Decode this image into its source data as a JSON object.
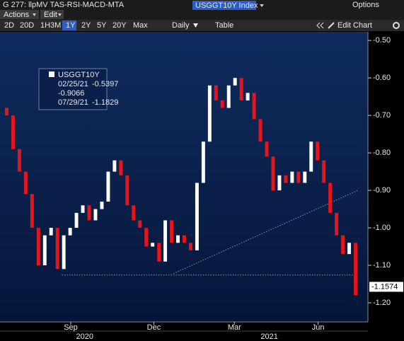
{
  "toolbar": {
    "title": "G 277: llpMV TAS-RSI-MACD-MTA",
    "ticker": "USGGT10Y Index",
    "options": "Options",
    "menus": [
      "Actions",
      "Edit"
    ],
    "periods": [
      "2D",
      "20D",
      "1H3M",
      "1Y",
      "2Y",
      "5Y",
      "20Y",
      "Max"
    ],
    "selected_period": 3,
    "frequency": "Daily",
    "table": "Table",
    "edit_chart": "Edit Chart"
  },
  "chart_data": {
    "type": "candlestick",
    "legend": {
      "name": "USGGT10Y",
      "high_date": "02/25/21",
      "high": -0.5397,
      "last": -0.9066,
      "low_date": "07/29/21",
      "low": -1.1829
    },
    "x": [
      0,
      1,
      2,
      3,
      4,
      5,
      6,
      7,
      8,
      9,
      10,
      11,
      12,
      13,
      14,
      15,
      16,
      17,
      18,
      19,
      20,
      21,
      22,
      23,
      24,
      25,
      26,
      27,
      28,
      29,
      30,
      31,
      32,
      33,
      34,
      35,
      36,
      37,
      38,
      39,
      40,
      41,
      42,
      43,
      44,
      45,
      46,
      47,
      48,
      49,
      50,
      51,
      52,
      53,
      54,
      55
    ],
    "open": [
      -0.68,
      -0.7,
      -0.79,
      -0.85,
      -0.91,
      -1.0,
      -1.1,
      -1.02,
      -1.0,
      -1.11,
      -1.02,
      -1.0,
      -0.96,
      -0.94,
      -0.98,
      -0.95,
      -0.93,
      -0.85,
      -0.82,
      -0.86,
      -0.94,
      -0.98,
      -1.0,
      -1.05,
      -1.04,
      -1.09,
      -0.98,
      -1.04,
      -1.02,
      -1.04,
      -1.06,
      -0.88,
      -0.77,
      -0.62,
      -0.66,
      -0.68,
      -0.62,
      -0.6,
      -0.66,
      -0.64,
      -0.71,
      -0.77,
      -0.81,
      -0.9,
      -0.86,
      -0.88,
      -0.85,
      -0.88,
      -0.85,
      -0.77,
      -0.82,
      -0.88,
      -0.96,
      -1.02,
      -1.07,
      -1.04
    ],
    "close": [
      -0.7,
      -0.79,
      -0.85,
      -0.91,
      -1.0,
      -1.1,
      -1.02,
      -1.0,
      -1.11,
      -1.02,
      -1.0,
      -0.96,
      -0.94,
      -0.98,
      -0.95,
      -0.93,
      -0.85,
      -0.82,
      -0.86,
      -0.94,
      -0.98,
      -1.0,
      -1.05,
      -1.04,
      -1.09,
      -0.98,
      -1.04,
      -1.02,
      -1.04,
      -1.06,
      -0.88,
      -0.77,
      -0.62,
      -0.66,
      -0.68,
      -0.62,
      -0.6,
      -0.66,
      -0.64,
      -0.71,
      -0.77,
      -0.81,
      -0.9,
      -0.86,
      -0.88,
      -0.85,
      -0.88,
      -0.85,
      -0.77,
      -0.82,
      -0.88,
      -0.96,
      -1.02,
      -1.07,
      -1.04,
      -1.18
    ],
    "up_color": "#ffffff",
    "down_color": "#e8141a",
    "last_value": -1.1574,
    "hline": {
      "y": -1.126,
      "x": [
        9.2,
        55.8
      ]
    },
    "trendline": {
      "x": [
        26.8,
        56
      ],
      "y": [
        -1.122,
        -0.899
      ]
    },
    "xlim": [
      0,
      56
    ],
    "xticks": [
      {
        "value": 10.6,
        "label": "Sep"
      },
      {
        "value": 23.7,
        "label": "Dec"
      },
      {
        "value": 36.4,
        "label": "Mar"
      },
      {
        "value": 49.6,
        "label": "Jun"
      }
    ],
    "year_labels": [
      {
        "value": 12.8,
        "label": "2020"
      },
      {
        "value": 41.9,
        "label": "2021"
      }
    ],
    "ylim": [
      -1.251,
      -0.477
    ],
    "yticks": [
      {
        "value": -0.5,
        "label": "-0.50"
      },
      {
        "value": -0.6,
        "label": "-0.60"
      },
      {
        "value": -0.7,
        "label": "-0.70"
      },
      {
        "value": -0.8,
        "label": "-0.80"
      },
      {
        "value": -0.9,
        "label": "-0.90"
      },
      {
        "value": -1.0,
        "label": "-1.00"
      },
      {
        "value": -1.1,
        "label": "-1.10"
      },
      {
        "value": -1.2,
        "label": "-1.20"
      }
    ]
  }
}
